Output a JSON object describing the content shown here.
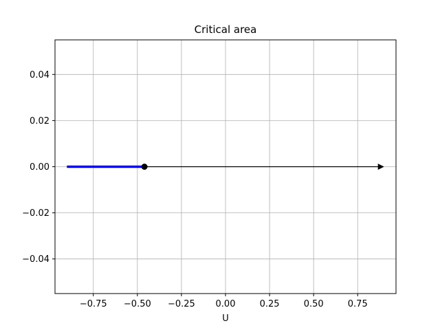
{
  "chart_data": {
    "type": "line",
    "title": "Critical area",
    "xlabel": "U",
    "ylabel": "",
    "xlim": [
      -0.9675,
      0.9675
    ],
    "ylim": [
      -0.055,
      0.055
    ],
    "grid": true,
    "x_ticks": [
      -0.75,
      -0.5,
      -0.25,
      0.0,
      0.25,
      0.5,
      0.75
    ],
    "x_tick_labels": [
      "−0.75",
      "−0.50",
      "−0.25",
      "0.00",
      "0.25",
      "0.50",
      "0.75"
    ],
    "y_ticks": [
      -0.04,
      -0.02,
      0.0,
      0.02,
      0.04
    ],
    "y_tick_labels": [
      "−0.04",
      "−0.02",
      "0.00",
      "0.02",
      "0.04"
    ],
    "series": [
      {
        "kind": "segment",
        "x": [
          -0.9,
          -0.46
        ],
        "y": [
          0.0,
          0.0
        ],
        "color": "#0000ff"
      },
      {
        "kind": "arrow",
        "x": [
          -0.46,
          0.9
        ],
        "y": [
          0.0,
          0.0
        ],
        "color": "#000000"
      },
      {
        "kind": "point",
        "x": [
          -0.46
        ],
        "y": [
          0.0
        ],
        "color": "#000000"
      }
    ],
    "colors": {
      "grid": "#b0b0b0",
      "axes": "#000000",
      "background": "#ffffff"
    }
  }
}
